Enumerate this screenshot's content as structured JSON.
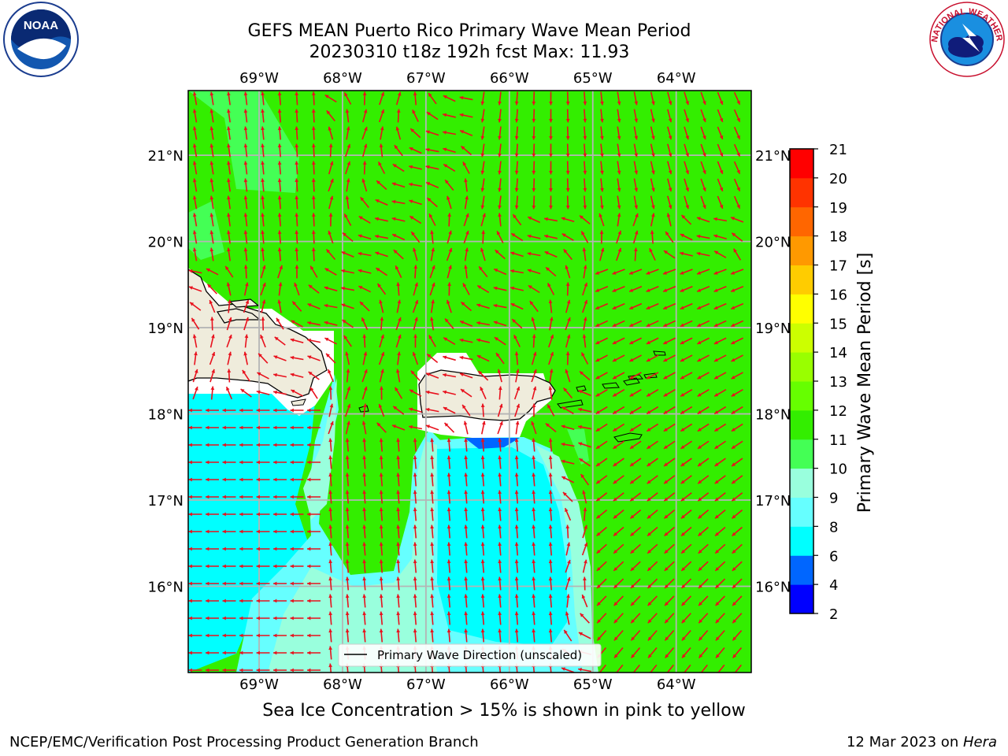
{
  "title": {
    "line1": "GEFS MEAN Puerto Rico Primary Wave Mean Period",
    "line2": "20230310 t18z 192h fcst   Max: 11.93"
  },
  "logos": {
    "left": {
      "name": "NOAA",
      "label": "NOAA"
    },
    "right": {
      "name": "National Weather Service",
      "label": "NATIONAL WEATHER SERVICE"
    }
  },
  "map": {
    "extent": {
      "lon": [
        -69.85,
        -63.1
      ],
      "lat": [
        15.0,
        21.75
      ]
    },
    "lon_ticks": [
      "69°W",
      "68°W",
      "67°W",
      "66°W",
      "65°W",
      "64°W"
    ],
    "lat_ticks": [
      "21°N",
      "20°N",
      "19°N",
      "18°N",
      "17°N",
      "16°N"
    ],
    "legend_label": "Primary Wave Direction (unscaled)",
    "legend_location": "bottom-center",
    "arrow_color": "#e8111d",
    "gridlines": true
  },
  "colorbar": {
    "label": "Primary Wave Mean Period [s]",
    "ticks": [
      "2",
      "4",
      "6",
      "8",
      "9",
      "10",
      "11",
      "12",
      "13",
      "14",
      "15",
      "16",
      "17",
      "18",
      "19",
      "20",
      "21"
    ],
    "colors": [
      "#0000ff",
      "#0066ff",
      "#00ffff",
      "#66ffff",
      "#99ffdd",
      "#44ff55",
      "#33ee00",
      "#66ff00",
      "#99ff00",
      "#ccff00",
      "#ffff00",
      "#ffcc00",
      "#ff9900",
      "#ff6600",
      "#ff3300",
      "#ff0000"
    ]
  },
  "caption": "Sea Ice Concentration > 15% is shown in pink to yellow",
  "footer": {
    "left": "NCEP/EMC/Verification Post Processing Product Generation Branch",
    "right_prefix": "12 Mar 2023 on ",
    "right_host": "Hera"
  }
}
